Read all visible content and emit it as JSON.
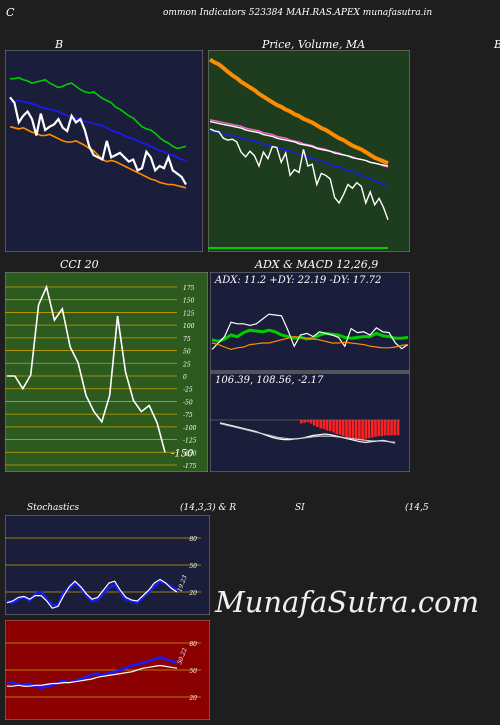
{
  "header": {
    "left_letter": "C",
    "title": "ommon  Indicators 523384  MAH.RAS.APEX  munafasutra.in"
  },
  "watermark": "MunafaSutra.com",
  "colors": {
    "navy": "#1b1e3a",
    "green_panel": "#1e3d1e",
    "green_panel2": "#2d5a1e",
    "red_panel": "#8b0000",
    "blue": "#1a1aff",
    "orange": "#ff8c00",
    "green": "#00cc00",
    "white": "#ffffff"
  },
  "chart_data": [
    {
      "id": "bollinger",
      "type": "line",
      "title": "B",
      "series": [
        {
          "color": "#00cc00",
          "values": [
            92,
            92,
            93,
            91,
            90,
            88,
            89,
            90,
            91,
            88,
            86,
            84,
            85,
            87,
            88,
            85,
            82,
            80,
            79,
            80,
            77,
            74,
            72,
            70,
            66,
            64,
            61,
            58,
            56,
            52,
            48,
            46,
            45,
            42,
            38,
            35,
            33,
            30,
            28,
            29,
            30
          ]
        },
        {
          "color": "#1a1aff",
          "values": [
            70,
            71,
            72,
            71,
            70,
            69,
            68,
            66,
            65,
            64,
            63,
            62,
            60,
            58,
            57,
            56,
            55,
            53,
            52,
            51,
            50,
            49,
            47,
            45,
            43,
            42,
            40,
            38,
            37,
            35,
            33,
            32,
            30,
            28,
            26,
            25,
            23,
            22,
            20,
            18,
            17
          ]
        },
        {
          "color": "#ff8c00",
          "values": [
            48,
            47,
            46,
            47,
            45,
            43,
            42,
            40,
            40,
            41,
            39,
            37,
            35,
            34,
            34,
            35,
            33,
            31,
            28,
            26,
            22,
            18,
            16,
            17,
            16,
            14,
            12,
            10,
            8,
            6,
            4,
            2,
            0,
            -1,
            -3,
            -4,
            -5,
            -5,
            -6,
            -7,
            -8
          ]
        },
        {
          "color": "#ffffff",
          "values": [
            75,
            70,
            52,
            58,
            62,
            55,
            40,
            60,
            45,
            48,
            50,
            55,
            47,
            44,
            58,
            52,
            55,
            45,
            30,
            22,
            20,
            18,
            35,
            20,
            22,
            24,
            20,
            16,
            18,
            8,
            10,
            25,
            20,
            8,
            12,
            10,
            20,
            8,
            5,
            2,
            -5
          ]
        }
      ]
    },
    {
      "id": "price_sma",
      "type": "line",
      "title": "Price,  Volume,  MA",
      "series": [
        {
          "color": "#ff8c00",
          "values": [
            195,
            192,
            190,
            186,
            182,
            178,
            175,
            171,
            168,
            165,
            162,
            158,
            155,
            152,
            149,
            146,
            144,
            141,
            139,
            136,
            134,
            131,
            129,
            127,
            124,
            121,
            119,
            116,
            113,
            110,
            108,
            105,
            102,
            100,
            98,
            95,
            92,
            89,
            87,
            85,
            83
          ]
        },
        {
          "color": "#ff66cc",
          "values": [
            130,
            129,
            128,
            127,
            126,
            125,
            124,
            123,
            121,
            120,
            119,
            118,
            116,
            115,
            114,
            112,
            111,
            110,
            108,
            107,
            106,
            104,
            103,
            102,
            100,
            99,
            98,
            96,
            95,
            94,
            92,
            91,
            90,
            88,
            87,
            86,
            84,
            83,
            82,
            80,
            79
          ]
        },
        {
          "color": "#ffffff",
          "values": [
            128,
            127,
            126,
            125,
            124,
            123,
            122,
            121,
            119,
            118,
            117,
            116,
            114,
            113,
            112,
            110,
            109,
            108,
            107,
            106,
            104,
            103,
            102,
            101,
            99,
            98,
            97,
            96,
            94,
            93,
            92,
            91,
            89,
            88,
            87,
            86,
            84,
            83,
            82,
            81,
            80
          ]
        },
        {
          "color": "#1a1aff",
          "values": [
            118,
            117,
            116,
            115,
            114,
            113,
            112,
            110,
            109,
            108,
            107,
            105,
            104,
            103,
            101,
            100,
            99,
            97,
            96,
            94,
            93,
            91,
            90,
            88,
            87,
            85,
            84,
            82,
            80,
            79,
            77,
            75,
            74,
            72,
            70,
            68,
            66,
            64,
            62,
            60,
            58
          ]
        },
        {
          "color": "#ffffff",
          "values": [
            120,
            118,
            117,
            110,
            108,
            109,
            106,
            95,
            90,
            96,
            91,
            80,
            95,
            88,
            101,
            100,
            84,
            94,
            70,
            76,
            73,
            98,
            80,
            82,
            60,
            72,
            70,
            66,
            46,
            40,
            49,
            60,
            56,
            62,
            58,
            40,
            52,
            38,
            45,
            35,
            22
          ]
        }
      ]
    },
    {
      "id": "cci",
      "type": "line",
      "title": "CCI 20",
      "yticks": [
        "175",
        "150",
        "125",
        "100",
        "75",
        "50",
        "25",
        "0",
        "-25",
        "-50",
        "-75",
        "-100",
        "-125",
        "-150",
        "-175"
      ],
      "ylim": [
        -175,
        175
      ],
      "series": [
        {
          "color": "#ffffff",
          "values": [
            0,
            0,
            -25,
            2,
            140,
            175,
            110,
            132,
            57,
            26,
            -38,
            -70,
            -90,
            -38,
            118,
            8,
            -48,
            -70,
            -58,
            -92,
            -150
          ]
        }
      ],
      "last_value_label": "-150"
    },
    {
      "id": "adx",
      "type": "line",
      "title": "ADX  & MACD 12,26,9",
      "readout": "ADX: 11.2  +DY: 22.19 -DY: 17.72",
      "series": [
        {
          "color": "#00cc00",
          "values": [
            34,
            32,
            35,
            40,
            38,
            43,
            46,
            45,
            44,
            46,
            44,
            40,
            38,
            36,
            37,
            35,
            36,
            40,
            42,
            41,
            40,
            37,
            36,
            37,
            38,
            38,
            42,
            39,
            38,
            36,
            36,
            37
          ]
        },
        {
          "color": "#ffffff",
          "values": [
            22,
            30,
            38,
            56,
            54,
            54,
            52,
            54,
            60,
            66,
            65,
            64,
            46,
            26,
            40,
            42,
            38,
            44,
            42,
            40,
            37,
            26,
            48,
            43,
            44,
            40,
            49,
            44,
            43,
            30,
            23,
            28
          ]
        },
        {
          "color": "#ff8c00",
          "values": [
            30,
            28,
            25,
            22,
            24,
            25,
            28,
            29,
            30,
            30,
            32,
            34,
            36,
            38,
            37,
            36,
            35,
            34,
            32,
            30,
            30,
            31,
            30,
            29,
            28,
            26,
            25,
            24,
            24,
            25,
            27,
            28
          ]
        }
      ]
    },
    {
      "id": "macd",
      "type": "bar",
      "readout": "106.39,  108.56,  -2.17",
      "bars": [
        -0.5,
        -0.4,
        -0.3,
        -0.5,
        -0.8,
        -1.0,
        -1.2,
        -1.3,
        -1.5,
        -1.6,
        -1.8,
        -2.0,
        -2.1,
        -2.3,
        -2.5,
        -2.5,
        -2.6,
        -2.7,
        -2.8,
        -2.8,
        -2.7,
        -2.6,
        -2.5,
        -2.4,
        -2.3,
        -2.3,
        -2.2,
        -2.2,
        -2.2,
        -2.2,
        -2.17
      ],
      "series": [
        {
          "color": "#ffffff",
          "values": [
            -0.4,
            -0.6,
            -0.8,
            -1.0,
            -1.2,
            -1.4,
            -1.6,
            -1.9,
            -2.2,
            -2.5,
            -2.7,
            -2.8,
            -2.8,
            -2.7,
            -2.6,
            -2.4,
            -2.2,
            -2.1,
            -2.0,
            -2.1,
            -2.3,
            -2.5,
            -2.7,
            -2.9,
            -3.1,
            -3.2,
            -3.1,
            -3.0,
            -2.9,
            -3.1,
            -3.3
          ]
        },
        {
          "color": "#cccccc",
          "values": [
            -0.5,
            -0.7,
            -0.9,
            -1.1,
            -1.3,
            -1.5,
            -1.7,
            -1.9,
            -2.1,
            -2.3,
            -2.5,
            -2.6,
            -2.7,
            -2.7,
            -2.6,
            -2.5,
            -2.4,
            -2.3,
            -2.3,
            -2.3,
            -2.4,
            -2.5,
            -2.6,
            -2.7,
            -2.8,
            -2.9,
            -3.0,
            -3.0,
            -3.0,
            -3.1,
            -3.2
          ]
        }
      ]
    },
    {
      "id": "stochastics",
      "type": "line",
      "title": "Stochastics",
      "params": "(14,3,3) & R",
      "yticks": [
        "80",
        "50",
        "20"
      ],
      "ylim": [
        0,
        100
      ],
      "last_value_label": "19.23",
      "series": [
        {
          "color": "#1a1aff",
          "values": [
            10,
            8,
            12,
            15,
            10,
            18,
            20,
            12,
            6,
            5,
            20,
            24,
            30,
            25,
            16,
            10,
            12,
            18,
            25,
            28,
            20,
            12,
            10,
            8,
            14,
            20,
            26,
            32,
            30,
            26,
            22
          ]
        },
        {
          "color": "#ffffff",
          "values": [
            8,
            10,
            14,
            15,
            12,
            16,
            16,
            10,
            2,
            4,
            16,
            26,
            32,
            26,
            18,
            12,
            14,
            22,
            30,
            32,
            22,
            14,
            11,
            10,
            16,
            22,
            30,
            34,
            30,
            24,
            20
          ]
        }
      ]
    },
    {
      "id": "rsi",
      "type": "line",
      "title": "SI",
      "params": "(14,5",
      "yticks": [
        "80",
        "50",
        "20"
      ],
      "ylim": [
        0,
        100
      ],
      "last_value_label": "50.22",
      "series": [
        {
          "color": "#1a1aff",
          "values": [
            35,
            36,
            34,
            33,
            35,
            32,
            30,
            32,
            33,
            36,
            38,
            36,
            38,
            40,
            42,
            45,
            46,
            44,
            47,
            48,
            50,
            52,
            55,
            56,
            58,
            60,
            62,
            64,
            62,
            60,
            58
          ]
        },
        {
          "color": "#ffffff",
          "values": [
            32,
            32,
            33,
            32,
            32,
            33,
            33,
            34,
            35,
            35,
            36,
            36,
            37,
            38,
            39,
            40,
            42,
            43,
            44,
            45,
            46,
            47,
            48,
            50,
            52,
            53,
            54,
            55,
            54,
            53,
            52
          ]
        }
      ]
    }
  ]
}
